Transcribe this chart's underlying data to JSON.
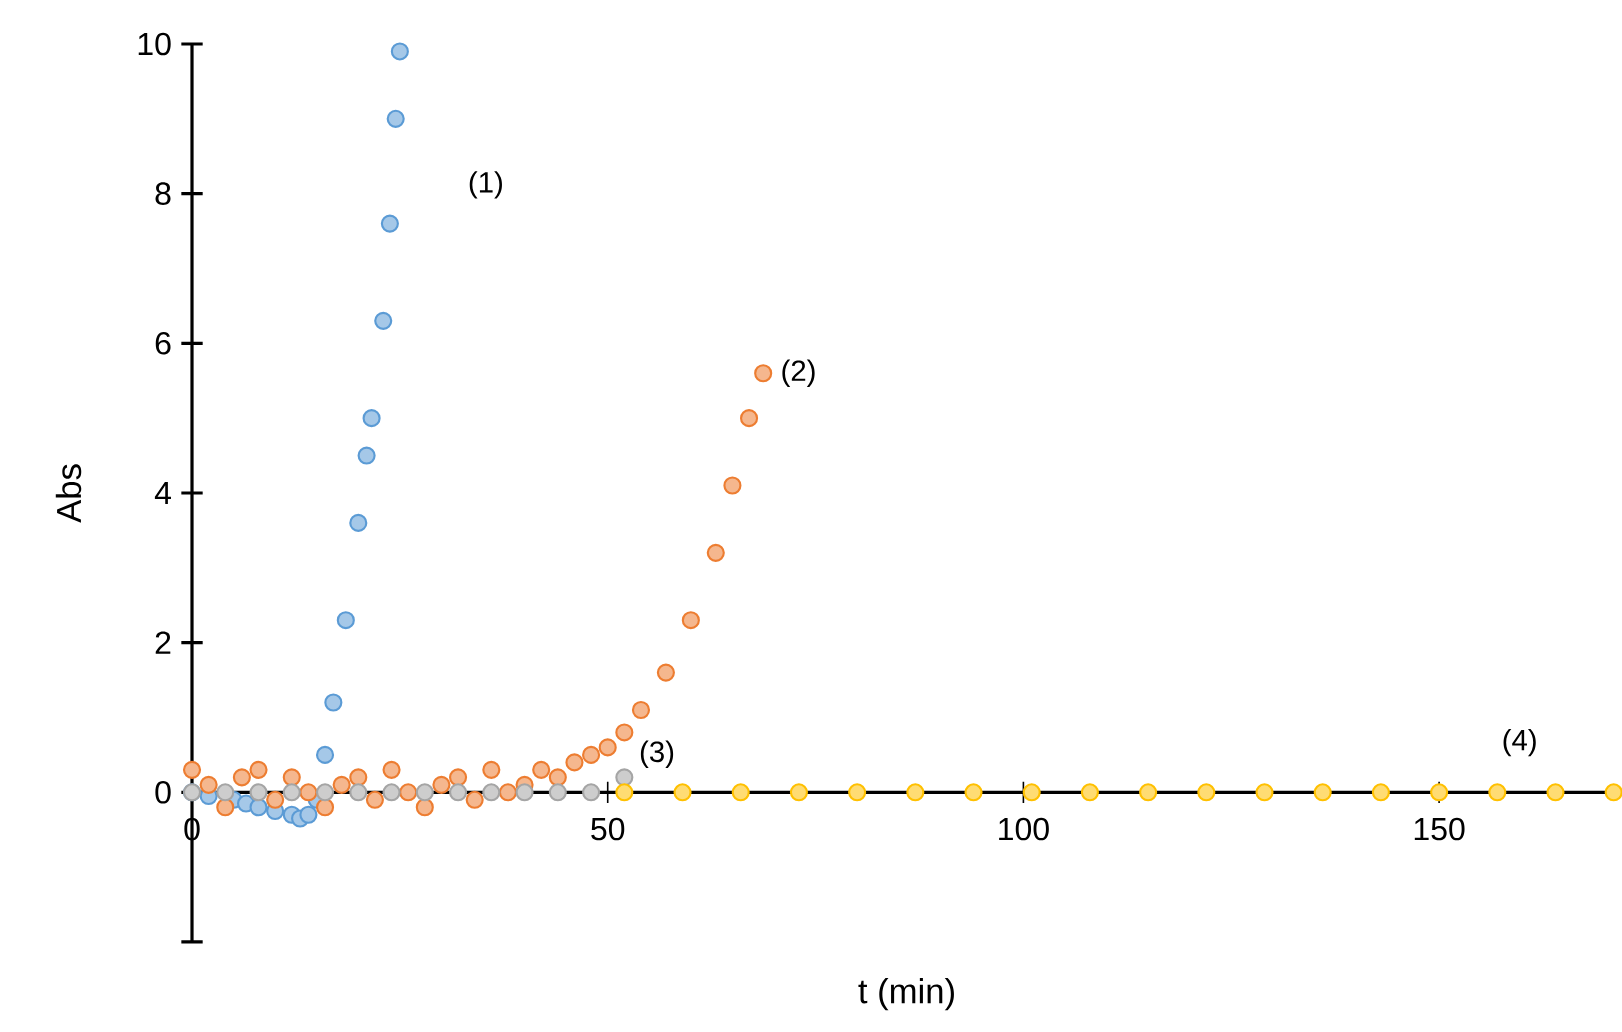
{
  "chart_data": {
    "type": "scatter",
    "xlabel": "t (min)",
    "ylabel": "Abs",
    "xlim": [
      0,
      172
    ],
    "ylim": [
      -2,
      10
    ],
    "xticks": [
      0,
      50,
      100,
      150
    ],
    "yticks": [
      {
        "value": -2,
        "label": null
      },
      0,
      2,
      4,
      6,
      8,
      10
    ],
    "marker": "circle",
    "series": [
      {
        "color": "#5b9bd5",
        "x": [
          0,
          2,
          5,
          6.5,
          8,
          10,
          12,
          13,
          14,
          15,
          16,
          17,
          18.5,
          20,
          21,
          21.6,
          23,
          23.8,
          24.5,
          25
        ],
        "values": [
          0,
          -0.05,
          -0.1,
          -0.15,
          -0.2,
          -0.25,
          -0.3,
          -0.35,
          -0.3,
          -0.1,
          0.5,
          1.2,
          2.3,
          3.6,
          4.5,
          5,
          6.3,
          7.6,
          9,
          9.9
        ]
      },
      {
        "color": "#ed7d31",
        "x": [
          0,
          2,
          4,
          6,
          8,
          10,
          12,
          14,
          16,
          18,
          20,
          22,
          24,
          26,
          28,
          30,
          32,
          34,
          36,
          38,
          40,
          42,
          44,
          46,
          48,
          50,
          52,
          54,
          57,
          60,
          63,
          65,
          67,
          68.7
        ],
        "values": [
          0.3,
          0.1,
          -0.2,
          0.2,
          0.3,
          -0.1,
          0.2,
          0,
          -0.2,
          0.1,
          0.2,
          -0.1,
          0.3,
          0,
          -0.2,
          0.1,
          0.2,
          -0.1,
          0.3,
          0,
          0.1,
          0.3,
          0.2,
          0.4,
          0.5,
          0.6,
          0.8,
          1.1,
          1.6,
          2.3,
          3.2,
          4.1,
          5,
          5.6
        ]
      },
      {
        "color": "#a5a5a5",
        "x": [
          0,
          4,
          8,
          12,
          16,
          20,
          24,
          28,
          32,
          36,
          40,
          44,
          48,
          52
        ],
        "values": [
          0,
          0,
          0,
          0,
          0,
          0,
          0,
          0,
          0,
          0,
          0,
          0,
          0,
          0.2
        ]
      },
      {
        "color": "#ffc000",
        "x": [
          52,
          59,
          66,
          73,
          80,
          87,
          94,
          101,
          108,
          115,
          122,
          129,
          136,
          143,
          150,
          157,
          164,
          171
        ],
        "values": [
          0,
          0,
          0,
          0,
          0,
          0,
          0,
          0,
          0,
          0,
          0,
          0,
          0,
          0,
          0,
          0,
          0,
          0
        ]
      }
    ],
    "annotations": [
      "(1)",
      "(2)",
      "(3)",
      "(4)"
    ]
  }
}
